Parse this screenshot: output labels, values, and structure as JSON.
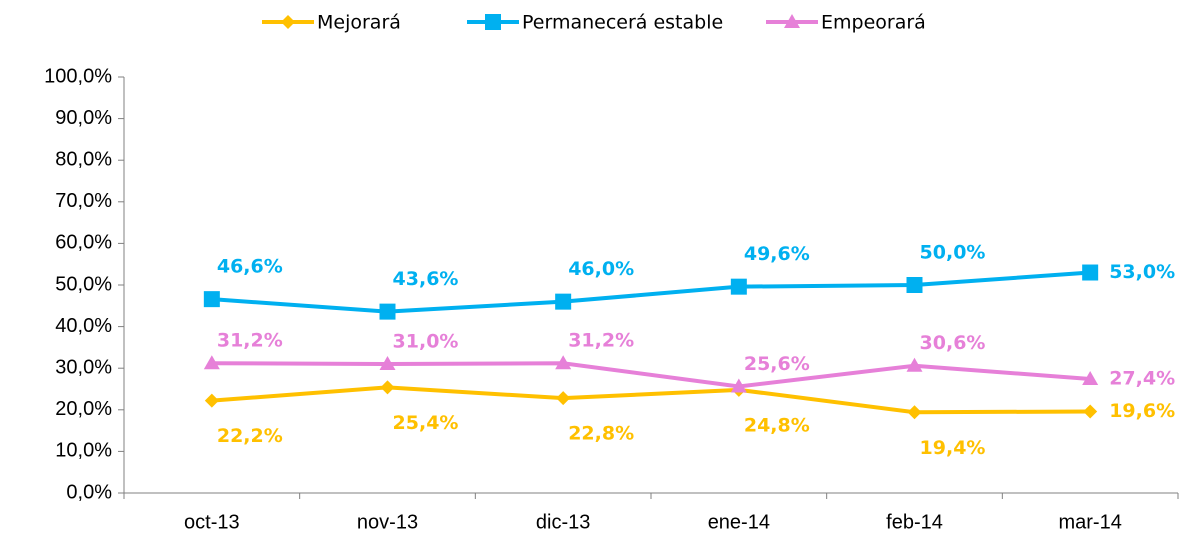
{
  "chart_data": {
    "type": "line",
    "categories": [
      "oct-13",
      "nov-13",
      "dic-13",
      "ene-14",
      "feb-14",
      "mar-14"
    ],
    "series": [
      {
        "name": "Mejorará",
        "color": "#FFC000",
        "marker": "diamond",
        "values": [
          22.2,
          25.4,
          22.8,
          24.8,
          19.4,
          19.6
        ],
        "value_labels": [
          "22,2%",
          "25,4%",
          "22,8%",
          "24,8%",
          "19,4%",
          "19,6%"
        ]
      },
      {
        "name": "Permanecerá estable",
        "color": "#00B0F0",
        "marker": "square",
        "values": [
          46.6,
          43.6,
          46.0,
          49.6,
          50.0,
          53.0
        ],
        "value_labels": [
          "46,6%",
          "43,6%",
          "46,0%",
          "49,6%",
          "50,0%",
          "53,0%"
        ]
      },
      {
        "name": "Empeorará",
        "color": "#E680D8",
        "marker": "triangle",
        "values": [
          31.2,
          31.0,
          31.2,
          25.6,
          30.6,
          27.4
        ],
        "value_labels": [
          "31,2%",
          "31,0%",
          "31,2%",
          "25,6%",
          "30,6%",
          "27,4%"
        ]
      }
    ],
    "ylim": [
      0,
      100
    ],
    "yticks": [
      {
        "value": 0,
        "label": "0,0%"
      },
      {
        "value": 10,
        "label": "10,0%"
      },
      {
        "value": 20,
        "label": "20,0%"
      },
      {
        "value": 30,
        "label": "30,0%"
      },
      {
        "value": 40,
        "label": "40,0%"
      },
      {
        "value": 50,
        "label": "50,0%"
      },
      {
        "value": 60,
        "label": "60,0%"
      },
      {
        "value": 70,
        "label": "70,0%"
      },
      {
        "value": 80,
        "label": "80,0%"
      },
      {
        "value": 90,
        "label": "90,0%"
      },
      {
        "value": 100,
        "label": "100,0%"
      }
    ],
    "grid": false,
    "legend": "top"
  }
}
